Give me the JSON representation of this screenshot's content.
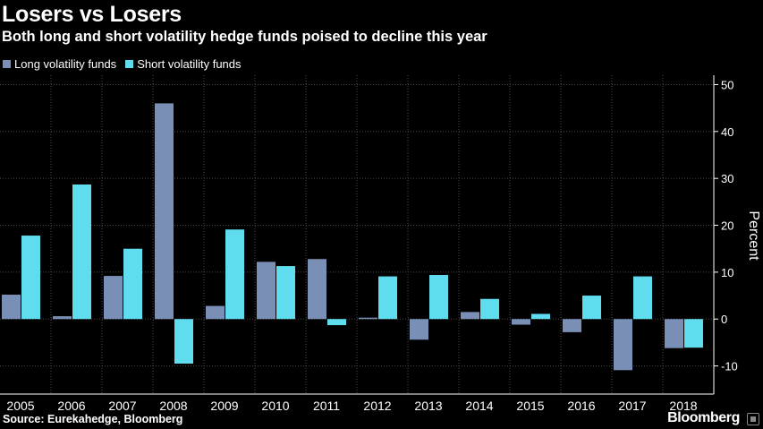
{
  "header": {
    "title": "Losers vs Losers",
    "subtitle": "Both long and short volatility hedge funds poised to decline this year"
  },
  "footer": {
    "source": "Source: Eurekahedge, Bloomberg",
    "brand": "Bloomberg"
  },
  "colors": {
    "background": "#000000",
    "long": "#7a8fb5",
    "short": "#5fdcee",
    "grid": "#4a4a4a",
    "axis": "#ffffff"
  },
  "chart_data": {
    "type": "bar",
    "title": "Losers vs Losers",
    "subtitle": "Both long and short volatility hedge funds poised to decline this year",
    "categories": [
      "2005",
      "2006",
      "2007",
      "2008",
      "2009",
      "2010",
      "2011",
      "2012",
      "2013",
      "2014",
      "2015",
      "2016",
      "2017",
      "2018"
    ],
    "series": [
      {
        "name": "Long volatility funds",
        "values": [
          5.2,
          0.6,
          9.2,
          46.0,
          2.8,
          12.2,
          12.8,
          0.3,
          -4.4,
          1.5,
          -1.2,
          -2.8,
          -10.9,
          -6.2
        ]
      },
      {
        "name": "Short volatility funds",
        "values": [
          17.8,
          28.7,
          15.0,
          -9.5,
          19.1,
          11.3,
          -1.3,
          9.1,
          9.4,
          4.3,
          1.1,
          5.0,
          9.1,
          -6.1
        ]
      }
    ],
    "xlabel": "",
    "ylabel": "Percent",
    "ylim": [
      -16,
      52
    ],
    "yticks": [
      -10,
      0,
      10,
      20,
      30,
      40,
      50
    ],
    "ytick_labels": [
      "-10",
      "0",
      "10",
      "20",
      "30",
      "40",
      "50"
    ],
    "grid": true,
    "legend_position": "top-left"
  }
}
